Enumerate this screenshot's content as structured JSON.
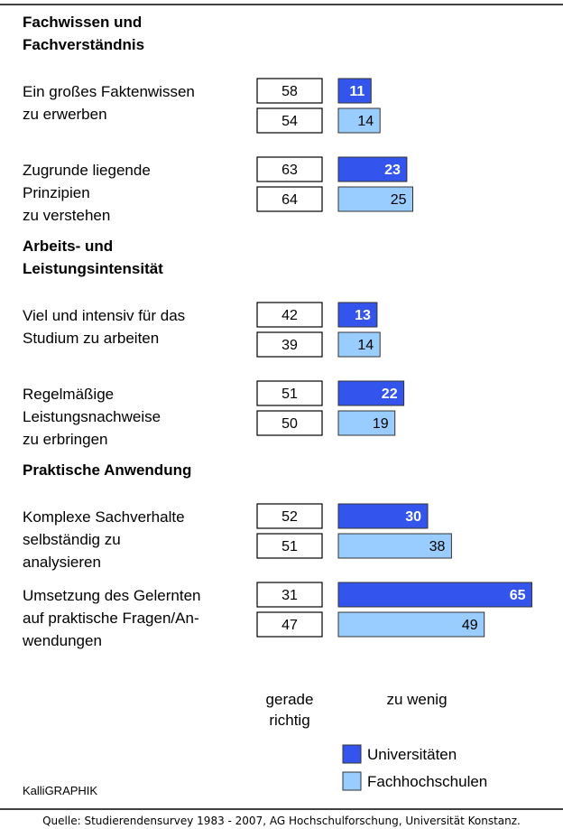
{
  "chart_data": {
    "type": "bar",
    "column_labels": {
      "gerade_richtig": [
        "gerade",
        "richtig"
      ],
      "zu_wenig": [
        "zu wenig"
      ]
    },
    "series": [
      {
        "name": "Universitäten",
        "color": "#3355ee"
      },
      {
        "name": "Fachhochschulen",
        "color": "#99ccff"
      }
    ],
    "groups": [
      {
        "title": [
          "Fachwissen und",
          "Fachverständnis"
        ],
        "items": [
          {
            "label": [
              "Ein großes Faktenwissen",
              "zu erwerben"
            ],
            "gerade_richtig": [
              58,
              54
            ],
            "zu_wenig": [
              11,
              14
            ]
          },
          {
            "label": [
              "Zugrunde liegende",
              "Prinzipien",
              "zu verstehen"
            ],
            "gerade_richtig": [
              63,
              64
            ],
            "zu_wenig": [
              23,
              25
            ]
          }
        ]
      },
      {
        "title": [
          "Arbeits- und",
          "Leistungsintensität"
        ],
        "items": [
          {
            "label": [
              "Viel und intensiv für das",
              "Studium zu arbeiten"
            ],
            "gerade_richtig": [
              42,
              39
            ],
            "zu_wenig": [
              13,
              14
            ]
          },
          {
            "label": [
              "Regelmäßige",
              "Leistungsnachweise",
              "zu erbringen"
            ],
            "gerade_richtig": [
              51,
              50
            ],
            "zu_wenig": [
              22,
              19
            ]
          }
        ]
      },
      {
        "title": [
          "Praktische Anwendung"
        ],
        "items": [
          {
            "label": [
              "Komplexe Sachverhalte",
              "selbständig zu",
              "analysieren"
            ],
            "gerade_richtig": [
              52,
              51
            ],
            "zu_wenig": [
              30,
              38
            ]
          },
          {
            "label": [
              "Umsetzung des Gelernten",
              "auf praktische Fragen/An-",
              "wendungen"
            ],
            "gerade_richtig": [
              31,
              47
            ],
            "zu_wenig": [
              65,
              49
            ]
          }
        ]
      }
    ],
    "credit": "KalliGRAPHIK",
    "source": "Quelle: Studierendensurvey 1983 - 2007, AG Hochschulforschung, Universität Konstanz."
  }
}
